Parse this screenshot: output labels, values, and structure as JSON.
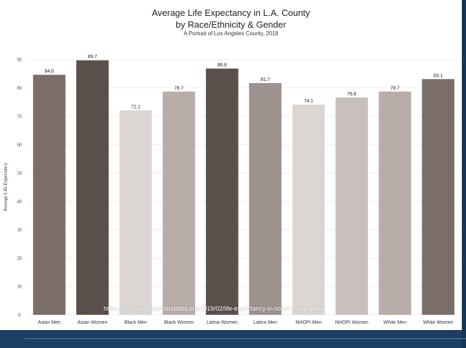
{
  "chart_data": {
    "type": "bar",
    "title": "Average Life Expectancy in L.A. County",
    "subtitle": "by Race/Ethnicity & Gender",
    "caption": "A Portrait of Los Angeles County, 2018",
    "ylabel": "Average Life Expectancy",
    "xlabel": "",
    "ylim": [
      0,
      90
    ],
    "yticks": [
      0,
      10,
      20,
      30,
      40,
      50,
      60,
      70,
      80,
      90
    ],
    "grid": true,
    "categories": [
      "Asian Men",
      "Asian Women",
      "Black Men",
      "Black Women",
      "Latina Women",
      "Latino Men",
      "NHOPI Men",
      "NHOPI Women",
      "White Men",
      "White Women"
    ],
    "values": [
      84.6,
      89.7,
      72.1,
      78.7,
      86.8,
      81.7,
      74.1,
      76.6,
      78.7,
      83.1
    ],
    "value_labels": [
      "84.6",
      "89.7",
      "72.1",
      "78.7",
      "86.8",
      "81.7",
      "74.1",
      "76.6",
      "78.7",
      "83.1"
    ],
    "colors": [
      "#7b6e68",
      "#5b4f4b",
      "#dcd6d3",
      "#b9adaa",
      "#5b4f4b",
      "#9e928f",
      "#dcd6d3",
      "#c9c0bd",
      "#b9adaa",
      "#7b6e68"
    ]
  },
  "watermark": "https://la.myneighborhooddata.org/2019/02/life-expectancy-in-south-los-angeles/"
}
